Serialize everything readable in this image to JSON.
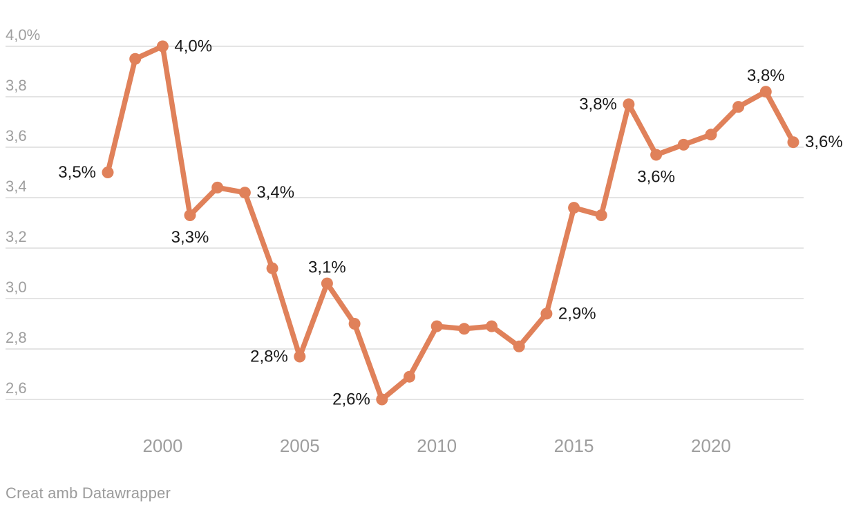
{
  "chart_data": {
    "type": "line",
    "title": "",
    "xlabel": "",
    "ylabel": "",
    "grid": true,
    "legend": "none",
    "x": [
      1998,
      1999,
      2000,
      2001,
      2002,
      2003,
      2004,
      2005,
      2006,
      2007,
      2008,
      2009,
      2010,
      2011,
      2012,
      2013,
      2014,
      2015,
      2016,
      2017,
      2018,
      2019,
      2020,
      2021,
      2022,
      2023
    ],
    "values": [
      3.5,
      3.95,
      4.0,
      3.33,
      3.44,
      3.42,
      3.12,
      2.77,
      3.06,
      2.9,
      2.6,
      2.69,
      2.89,
      2.88,
      2.89,
      2.81,
      2.94,
      3.36,
      3.33,
      3.77,
      3.57,
      3.61,
      3.65,
      3.76,
      3.82,
      3.62
    ],
    "ylim": [
      2.6,
      4.0
    ],
    "xlim": [
      1998,
      2023
    ],
    "y_ticks": [
      "4,0%",
      "3,8",
      "3,6",
      "3,4",
      "3,2",
      "3,0",
      "2,8",
      "2,6"
    ],
    "y_tick_values": [
      4.0,
      3.8,
      3.6,
      3.4,
      3.2,
      3.0,
      2.8,
      2.6
    ],
    "x_ticks": [
      "2000",
      "2005",
      "2010",
      "2015",
      "2020"
    ],
    "x_tick_values": [
      2000,
      2005,
      2010,
      2015,
      2020
    ],
    "point_labels": [
      {
        "x": 1998,
        "text": "3,5%",
        "pos": "left"
      },
      {
        "x": 2000,
        "text": "4,0%",
        "pos": "right"
      },
      {
        "x": 2001,
        "text": "3,3%",
        "pos": "below"
      },
      {
        "x": 2003,
        "text": "3,4%",
        "pos": "right"
      },
      {
        "x": 2005,
        "text": "2,8%",
        "pos": "left"
      },
      {
        "x": 2006,
        "text": "3,1%",
        "pos": "above"
      },
      {
        "x": 2008,
        "text": "2,6%",
        "pos": "left"
      },
      {
        "x": 2014,
        "text": "2,9%",
        "pos": "right"
      },
      {
        "x": 2017,
        "text": "3,8%",
        "pos": "left"
      },
      {
        "x": 2018,
        "text": "3,6%",
        "pos": "below"
      },
      {
        "x": 2022,
        "text": "3,8%",
        "pos": "above"
      },
      {
        "x": 2023,
        "text": "3,6%",
        "pos": "right"
      }
    ],
    "colors": {
      "line": "#E0815A",
      "marker": "#E0815A",
      "grid": "#E4E4E4",
      "tick_label": "#9E9E9E",
      "point_label": "#1A1A1A",
      "background": "#FFFFFF"
    }
  },
  "footer": {
    "prefix": "Creat amb ",
    "link_label": "Datawrapper",
    "color": "#9B9B9B"
  }
}
